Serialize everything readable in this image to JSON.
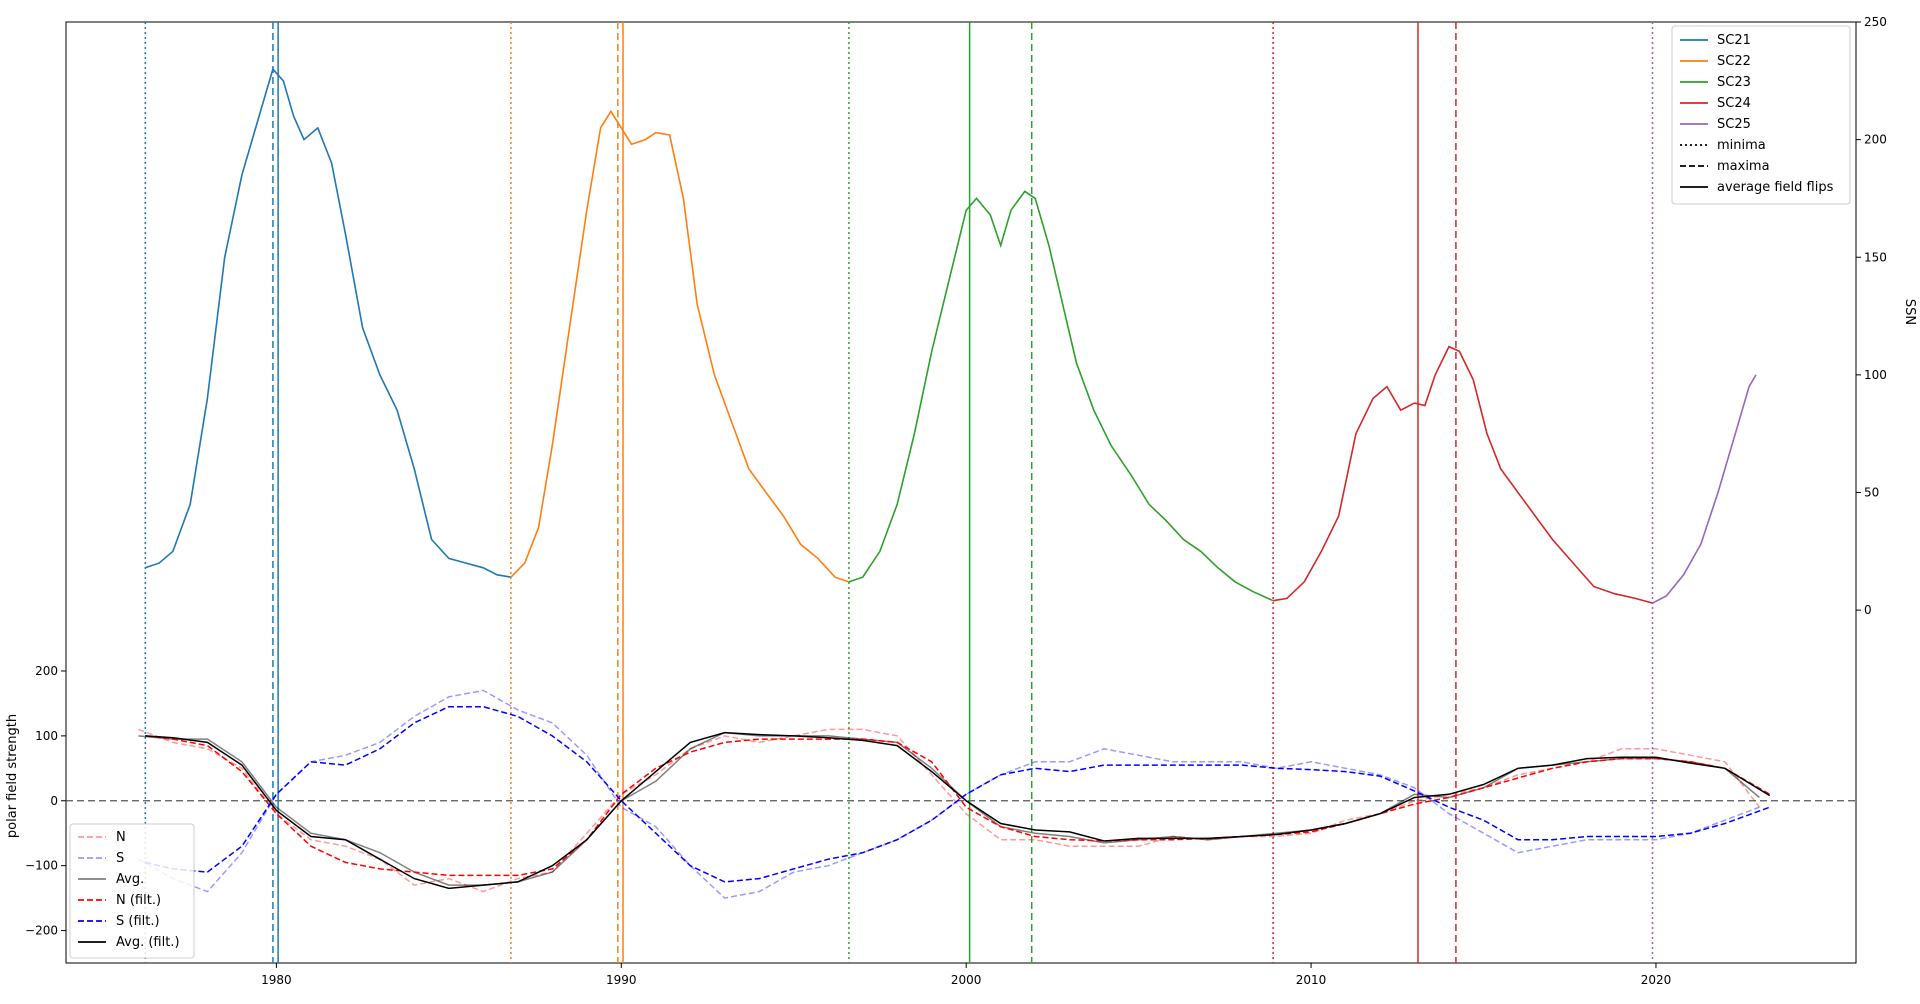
{
  "chart_data": {
    "type": "line",
    "x_ticks": [
      1980,
      1990,
      2000,
      2010,
      2020
    ],
    "x_tick_labels": [
      "1980",
      "1990",
      "2000",
      "2010",
      "2020"
    ],
    "xlim": [
      1973.9,
      2025.8
    ],
    "ssn_axis": {
      "label": "SSN",
      "ticks": [
        0,
        50,
        100,
        150,
        200,
        250
      ],
      "tick_labels": [
        "0",
        "50",
        "100",
        "150",
        "200",
        "250"
      ],
      "ylim": [
        -150,
        250
      ]
    },
    "pfs_axis": {
      "label": "polar field strength",
      "ticks": [
        -200,
        -100,
        0,
        100,
        200
      ],
      "tick_labels": [
        "−200",
        "−100",
        "0",
        "100",
        "200"
      ],
      "ylim": [
        -250,
        1200
      ]
    },
    "zero_line": 0,
    "colors": {
      "SC21": "#1f77b4",
      "SC22": "#ff7f0e",
      "SC23": "#2ca02c",
      "SC24": "#d62728",
      "SC25": "#9467bd",
      "N": "#ff0000",
      "S": "#0000ff",
      "Avg": "#000000",
      "zero": "#555555"
    },
    "ssn_series": [
      {
        "name": "SC21",
        "x": [
          1976.2,
          1976.6,
          1977.0,
          1977.5,
          1978.0,
          1978.5,
          1979.0,
          1979.5,
          1979.9,
          1980.2,
          1980.5,
          1980.8,
          1981.2,
          1981.6,
          1982.0,
          1982.5,
          1983.0,
          1983.5,
          1984.0,
          1984.5,
          1985.0,
          1985.5,
          1986.0,
          1986.4,
          1986.8
        ],
        "y": [
          18,
          20,
          25,
          45,
          90,
          150,
          185,
          210,
          230,
          225,
          210,
          200,
          205,
          190,
          160,
          120,
          100,
          85,
          60,
          30,
          22,
          20,
          18,
          15,
          14
        ]
      },
      {
        "name": "SC22",
        "x": [
          1986.8,
          1987.2,
          1987.6,
          1988.0,
          1988.5,
          1989.0,
          1989.4,
          1989.7,
          1990.0,
          1990.3,
          1990.7,
          1991.0,
          1991.4,
          1991.8,
          1992.2,
          1992.7,
          1993.2,
          1993.7,
          1994.2,
          1994.7,
          1995.2,
          1995.7,
          1996.2,
          1996.6
        ],
        "y": [
          14,
          20,
          35,
          70,
          120,
          170,
          205,
          212,
          205,
          198,
          200,
          203,
          202,
          175,
          130,
          100,
          80,
          60,
          50,
          40,
          28,
          22,
          14,
          12
        ]
      },
      {
        "name": "SC23",
        "x": [
          1996.6,
          1997.0,
          1997.5,
          1998.0,
          1998.5,
          1999.0,
          1999.5,
          2000.0,
          2000.3,
          2000.7,
          2001.0,
          2001.3,
          2001.7,
          2002.0,
          2002.4,
          2002.8,
          2003.2,
          2003.7,
          2004.2,
          2004.8,
          2005.3,
          2005.8,
          2006.3,
          2006.8,
          2007.3,
          2007.8,
          2008.3,
          2008.9
        ],
        "y": [
          12,
          14,
          25,
          45,
          75,
          110,
          140,
          170,
          175,
          168,
          155,
          170,
          178,
          175,
          155,
          130,
          105,
          85,
          70,
          57,
          45,
          38,
          30,
          25,
          18,
          12,
          8,
          4
        ]
      },
      {
        "name": "SC24",
        "x": [
          2008.9,
          2009.3,
          2009.8,
          2010.3,
          2010.8,
          2011.3,
          2011.8,
          2012.2,
          2012.6,
          2013.0,
          2013.3,
          2013.6,
          2014.0,
          2014.3,
          2014.7,
          2015.1,
          2015.5,
          2016.0,
          2016.5,
          2017.0,
          2017.6,
          2018.2,
          2018.8,
          2019.4,
          2019.9
        ],
        "y": [
          4,
          5,
          12,
          25,
          40,
          75,
          90,
          95,
          85,
          88,
          87,
          100,
          112,
          110,
          98,
          75,
          60,
          50,
          40,
          30,
          20,
          10,
          7,
          5,
          3
        ]
      },
      {
        "name": "SC25",
        "x": [
          2019.9,
          2020.3,
          2020.8,
          2021.3,
          2021.8,
          2022.3,
          2022.7,
          2022.9
        ],
        "y": [
          3,
          6,
          15,
          28,
          50,
          75,
          95,
          100
        ]
      }
    ],
    "vlines": [
      {
        "x": 1976.2,
        "series": "SC21",
        "style": "minima"
      },
      {
        "x": 1979.9,
        "series": "SC21",
        "style": "maxima"
      },
      {
        "x": 1980.05,
        "series": "SC21",
        "style": "flip"
      },
      {
        "x": 1986.8,
        "series": "SC22",
        "style": "minima"
      },
      {
        "x": 1989.9,
        "series": "SC22",
        "style": "maxima"
      },
      {
        "x": 1990.05,
        "series": "SC22",
        "style": "flip"
      },
      {
        "x": 1996.6,
        "series": "SC23",
        "style": "minima"
      },
      {
        "x": 2000.1,
        "series": "SC23",
        "style": "flip"
      },
      {
        "x": 2001.9,
        "series": "SC23",
        "style": "maxima"
      },
      {
        "x": 2008.9,
        "series": "SC24",
        "style": "minima"
      },
      {
        "x": 2013.1,
        "series": "SC24",
        "style": "flip"
      },
      {
        "x": 2014.2,
        "series": "SC24",
        "style": "maxima"
      },
      {
        "x": 2019.9,
        "series": "SC25",
        "style": "minima"
      }
    ],
    "pfs_series": [
      {
        "name": "N",
        "style": "dashed-faint",
        "x": [
          1976,
          1977,
          1978,
          1979,
          1980,
          1981,
          1982,
          1983,
          1984,
          1985,
          1986,
          1987,
          1988,
          1989,
          1990,
          1991,
          1992,
          1993,
          1994,
          1995,
          1996,
          1997,
          1998,
          1999,
          2000,
          2001,
          2002,
          2003,
          2004,
          2005,
          2006,
          2007,
          2008,
          2009,
          2010,
          2011,
          2012,
          2013,
          2014,
          2015,
          2016,
          2017,
          2018,
          2019,
          2020,
          2021,
          2022,
          2023
        ],
        "y": [
          110,
          90,
          80,
          50,
          -20,
          -60,
          -70,
          -90,
          -130,
          -120,
          -140,
          -120,
          -110,
          -50,
          10,
          40,
          80,
          100,
          90,
          100,
          110,
          110,
          100,
          40,
          -20,
          -60,
          -60,
          -70,
          -70,
          -70,
          -55,
          -60,
          -55,
          -55,
          -50,
          -30,
          -20,
          0,
          10,
          20,
          40,
          50,
          60,
          80,
          80,
          70,
          60,
          -10
        ]
      },
      {
        "name": "S",
        "style": "dashed-faint",
        "x": [
          1976,
          1977,
          1978,
          1979,
          1980,
          1981,
          1982,
          1983,
          1984,
          1985,
          1986,
          1987,
          1988,
          1989,
          1990,
          1991,
          1992,
          1993,
          1994,
          1995,
          1996,
          1997,
          1998,
          1999,
          2000,
          2001,
          2002,
          2003,
          2004,
          2005,
          2006,
          2007,
          2008,
          2009,
          2010,
          2011,
          2012,
          2013,
          2014,
          2015,
          2016,
          2017,
          2018,
          2019,
          2020,
          2021,
          2022,
          2023
        ],
        "y": [
          -90,
          -120,
          -140,
          -80,
          10,
          60,
          70,
          90,
          130,
          160,
          170,
          140,
          120,
          70,
          -10,
          -40,
          -100,
          -150,
          -140,
          -110,
          -100,
          -80,
          -60,
          -30,
          10,
          40,
          60,
          60,
          80,
          70,
          60,
          60,
          60,
          50,
          60,
          50,
          40,
          20,
          -20,
          -50,
          -80,
          -70,
          -60,
          -60,
          -60,
          -50,
          -30,
          -10
        ]
      },
      {
        "name": "Avg.",
        "style": "solid-faint",
        "x": [
          1976,
          1977,
          1978,
          1979,
          1980,
          1981,
          1982,
          1983,
          1984,
          1985,
          1986,
          1987,
          1988,
          1989,
          1990,
          1991,
          1992,
          1993,
          1994,
          1995,
          1996,
          1997,
          1998,
          1999,
          2000,
          2001,
          2002,
          2003,
          2004,
          2005,
          2006,
          2007,
          2008,
          2009,
          2010,
          2011,
          2012,
          2013,
          2014,
          2015,
          2016,
          2017,
          2018,
          2019,
          2020,
          2021,
          2022,
          2023
        ],
        "y": [
          100,
          95,
          95,
          60,
          -10,
          -50,
          -60,
          -80,
          -110,
          -130,
          -130,
          -125,
          -110,
          -60,
          0,
          30,
          80,
          105,
          100,
          100,
          100,
          95,
          90,
          50,
          0,
          -40,
          -50,
          -55,
          -65,
          -60,
          -55,
          -60,
          -55,
          -50,
          -45,
          -35,
          -20,
          10,
          5,
          20,
          50,
          55,
          60,
          65,
          65,
          60,
          50,
          5
        ]
      },
      {
        "name": "N (filt.)",
        "style": "dashed",
        "x": [
          1976.2,
          1977,
          1978,
          1979,
          1980,
          1981,
          1982,
          1983,
          1984,
          1985,
          1986,
          1987,
          1988,
          1989,
          1990,
          1991,
          1992,
          1993,
          1994,
          1995,
          1996,
          1997,
          1998,
          1999,
          2000,
          2001,
          2002,
          2003,
          2004,
          2005,
          2006,
          2007,
          2008,
          2009,
          2010,
          2011,
          2012,
          2013,
          2014,
          2015,
          2016,
          2017,
          2018,
          2019,
          2020,
          2021,
          2022,
          2023.3
        ],
        "y": [
          100,
          95,
          85,
          45,
          -20,
          -70,
          -95,
          -105,
          -110,
          -115,
          -115,
          -115,
          -105,
          -60,
          10,
          50,
          75,
          90,
          95,
          95,
          95,
          95,
          90,
          60,
          -10,
          -40,
          -55,
          -60,
          -62,
          -60,
          -60,
          -58,
          -55,
          -52,
          -48,
          -35,
          -20,
          -5,
          5,
          20,
          35,
          50,
          60,
          65,
          65,
          60,
          50,
          10
        ]
      },
      {
        "name": "S (filt.)",
        "style": "dashed",
        "x": [
          1976.2,
          1977,
          1978,
          1979,
          1980,
          1981,
          1982,
          1983,
          1984,
          1985,
          1986,
          1987,
          1988,
          1989,
          1990,
          1991,
          1992,
          1993,
          1994,
          1995,
          1996,
          1997,
          1998,
          1999,
          2000,
          2001,
          2002,
          2003,
          2004,
          2005,
          2006,
          2007,
          2008,
          2009,
          2010,
          2011,
          2012,
          2013,
          2014,
          2015,
          2016,
          2017,
          2018,
          2019,
          2020,
          2021,
          2022,
          2023.3
        ],
        "y": [
          -95,
          -105,
          -110,
          -70,
          10,
          60,
          55,
          80,
          120,
          145,
          145,
          130,
          100,
          60,
          0,
          -50,
          -100,
          -125,
          -120,
          -105,
          -90,
          -80,
          -60,
          -30,
          10,
          40,
          50,
          45,
          55,
          55,
          55,
          55,
          55,
          50,
          48,
          45,
          38,
          15,
          -10,
          -30,
          -60,
          -60,
          -55,
          -55,
          -55,
          -50,
          -35,
          -10
        ]
      },
      {
        "name": "Avg. (filt.)",
        "style": "solid",
        "x": [
          1976.2,
          1977,
          1978,
          1979,
          1980,
          1981,
          1982,
          1983,
          1984,
          1985,
          1986,
          1987,
          1988,
          1989,
          1990,
          1991,
          1992,
          1993,
          1994,
          1995,
          1996,
          1997,
          1998,
          1999,
          2000,
          2001,
          2002,
          2003,
          2004,
          2005,
          2006,
          2007,
          2008,
          2009,
          2010,
          2011,
          2012,
          2013,
          2014,
          2015,
          2016,
          2017,
          2018,
          2019,
          2020,
          2021,
          2022,
          2023.3
        ],
        "y": [
          100,
          97,
          90,
          55,
          -15,
          -55,
          -60,
          -90,
          -120,
          -135,
          -130,
          -125,
          -100,
          -60,
          0,
          45,
          90,
          105,
          102,
          100,
          97,
          93,
          85,
          45,
          0,
          -35,
          -45,
          -48,
          -62,
          -58,
          -58,
          -58,
          -55,
          -52,
          -45,
          -35,
          -20,
          5,
          10,
          25,
          50,
          55,
          65,
          67,
          67,
          58,
          50,
          8
        ]
      }
    ],
    "legend_top": {
      "placement": "top-right",
      "entries": [
        {
          "label": "SC21",
          "key": "SC21",
          "dash": ""
        },
        {
          "label": "SC22",
          "key": "SC22",
          "dash": ""
        },
        {
          "label": "SC23",
          "key": "SC23",
          "dash": ""
        },
        {
          "label": "SC24",
          "key": "SC24",
          "dash": ""
        },
        {
          "label": "SC25",
          "key": "SC25",
          "dash": ""
        },
        {
          "label": "minima",
          "key": "Avg",
          "dash": "2,3"
        },
        {
          "label": "maxima",
          "key": "Avg",
          "dash": "6,3"
        },
        {
          "label": "average field flips",
          "key": "Avg",
          "dash": ""
        }
      ]
    },
    "legend_bottom": {
      "placement": "lower-left",
      "entries": [
        {
          "label": "N",
          "key": "N",
          "dash": "6,3",
          "opacity": 0.4
        },
        {
          "label": "S",
          "key": "S",
          "dash": "6,3",
          "opacity": 0.4
        },
        {
          "label": "Avg.",
          "key": "Avg",
          "dash": "",
          "opacity": 0.5
        },
        {
          "label": "N (filt.)",
          "key": "N",
          "dash": "6,3",
          "opacity": 1
        },
        {
          "label": "S (filt.)",
          "key": "S",
          "dash": "6,3",
          "opacity": 1
        },
        {
          "label": "Avg. (filt.)",
          "key": "Avg",
          "dash": "",
          "opacity": 1
        }
      ]
    }
  }
}
